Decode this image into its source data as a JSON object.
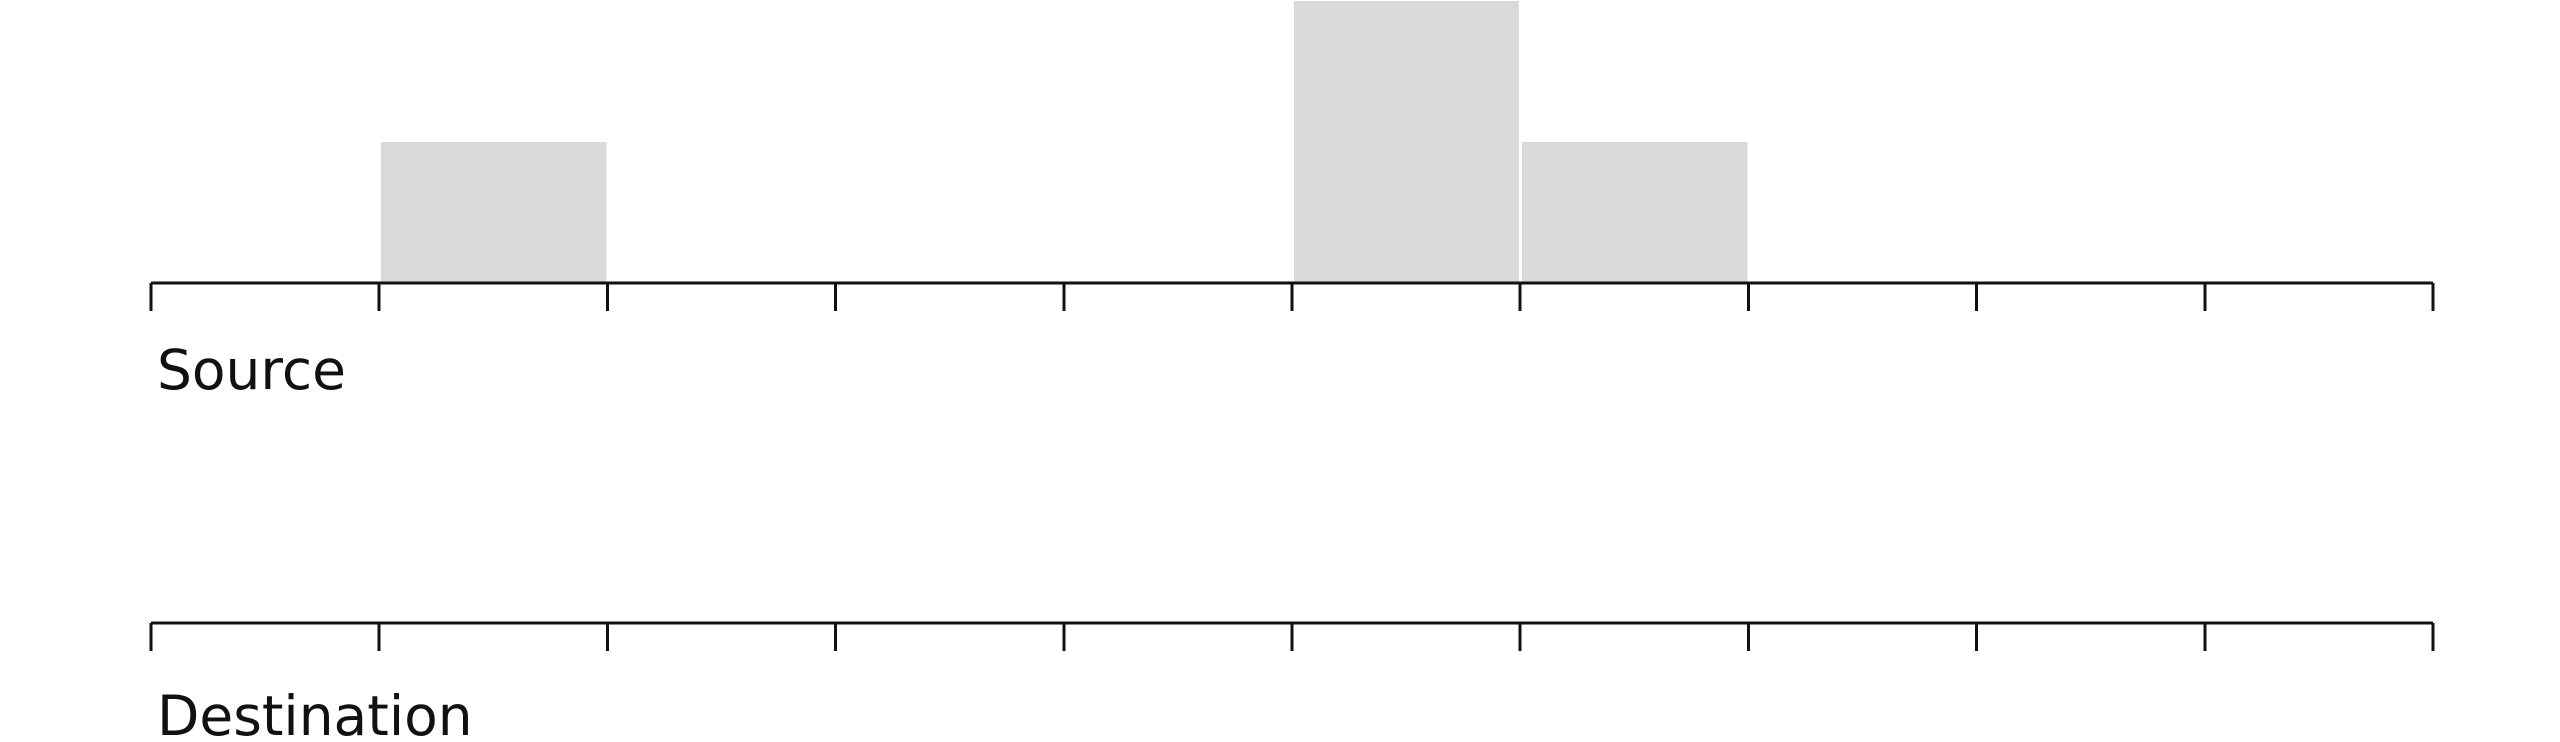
{
  "diagram": {
    "slot_count": 10,
    "block_color": "#d9d9d9",
    "line_color": "#111111",
    "background": "#ffffff",
    "tracks": [
      {
        "id": "source",
        "label": "Source",
        "blocks": [
          {
            "slot": 1,
            "level": 1
          },
          {
            "slot": 5,
            "level": 2
          },
          {
            "slot": 6,
            "level": 1
          }
        ]
      },
      {
        "id": "destination",
        "label": "Destination",
        "blocks": []
      }
    ]
  }
}
